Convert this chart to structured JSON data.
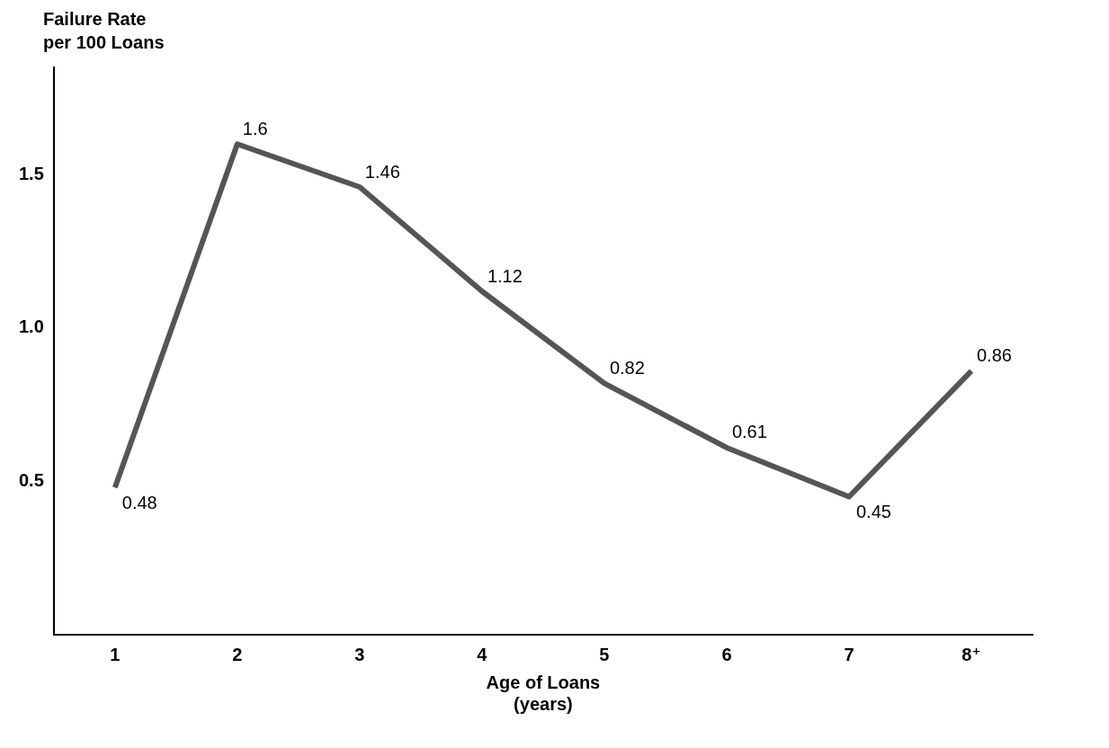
{
  "chart_data": {
    "type": "line",
    "ylabel": "Failure Rate\nper 100 Loans",
    "xlabel": "Age of Loans\n(years)",
    "categories": [
      "1",
      "2",
      "3",
      "4",
      "5",
      "6",
      "7",
      "8⁺"
    ],
    "series": [
      {
        "color": "#555555",
        "values": [
          0.48,
          1.6,
          1.46,
          1.12,
          0.82,
          0.61,
          0.45,
          0.86
        ]
      }
    ],
    "ylim": [
      0,
      1.85
    ],
    "yticks": [
      {
        "value": 0.5,
        "label": "0.5"
      },
      {
        "value": 1,
        "label": "1.0"
      },
      {
        "value": 1.5,
        "label": "1.5"
      }
    ],
    "data_labels": true,
    "marker": "none",
    "line_style": "solid"
  }
}
